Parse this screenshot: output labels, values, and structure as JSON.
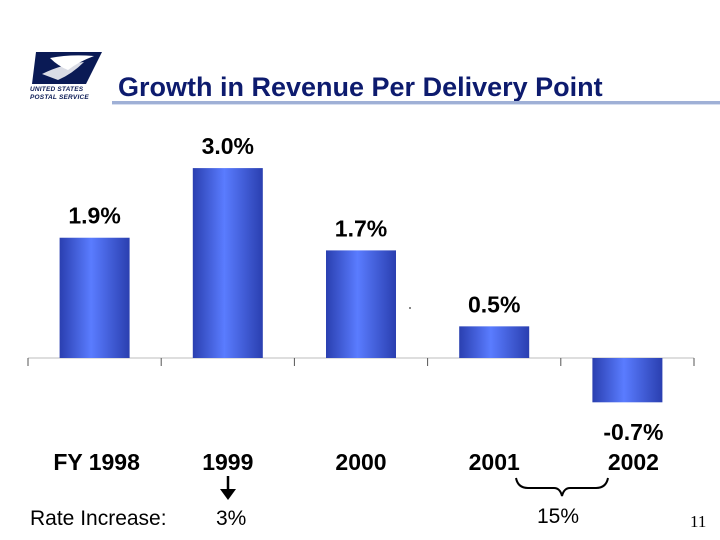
{
  "header": {
    "logo_icon": "usps-eagle-icon",
    "logo_text_line1": "UNITED STATES",
    "logo_text_line2": "POSTAL SERVICE",
    "title": "Growth in Revenue Per Delivery Point"
  },
  "chart_data": {
    "type": "bar",
    "title": "Growth in Revenue Per Delivery Point",
    "categories": [
      "FY 1998",
      "1999",
      "2000",
      "2001",
      "2002"
    ],
    "values": [
      1.9,
      3.0,
      1.7,
      0.5,
      -0.7
    ],
    "data_labels": [
      "1.9%",
      "3.0%",
      "1.7%",
      "0.5%",
      "-0.7%"
    ],
    "ylim": [
      -0.7,
      3.0
    ],
    "grid": false,
    "legend": "none",
    "bar_color": "#4f6ff0"
  },
  "rate_increase": {
    "label": "Rate Increase:",
    "first": "3%",
    "second": "15%"
  },
  "page_number": "11"
}
